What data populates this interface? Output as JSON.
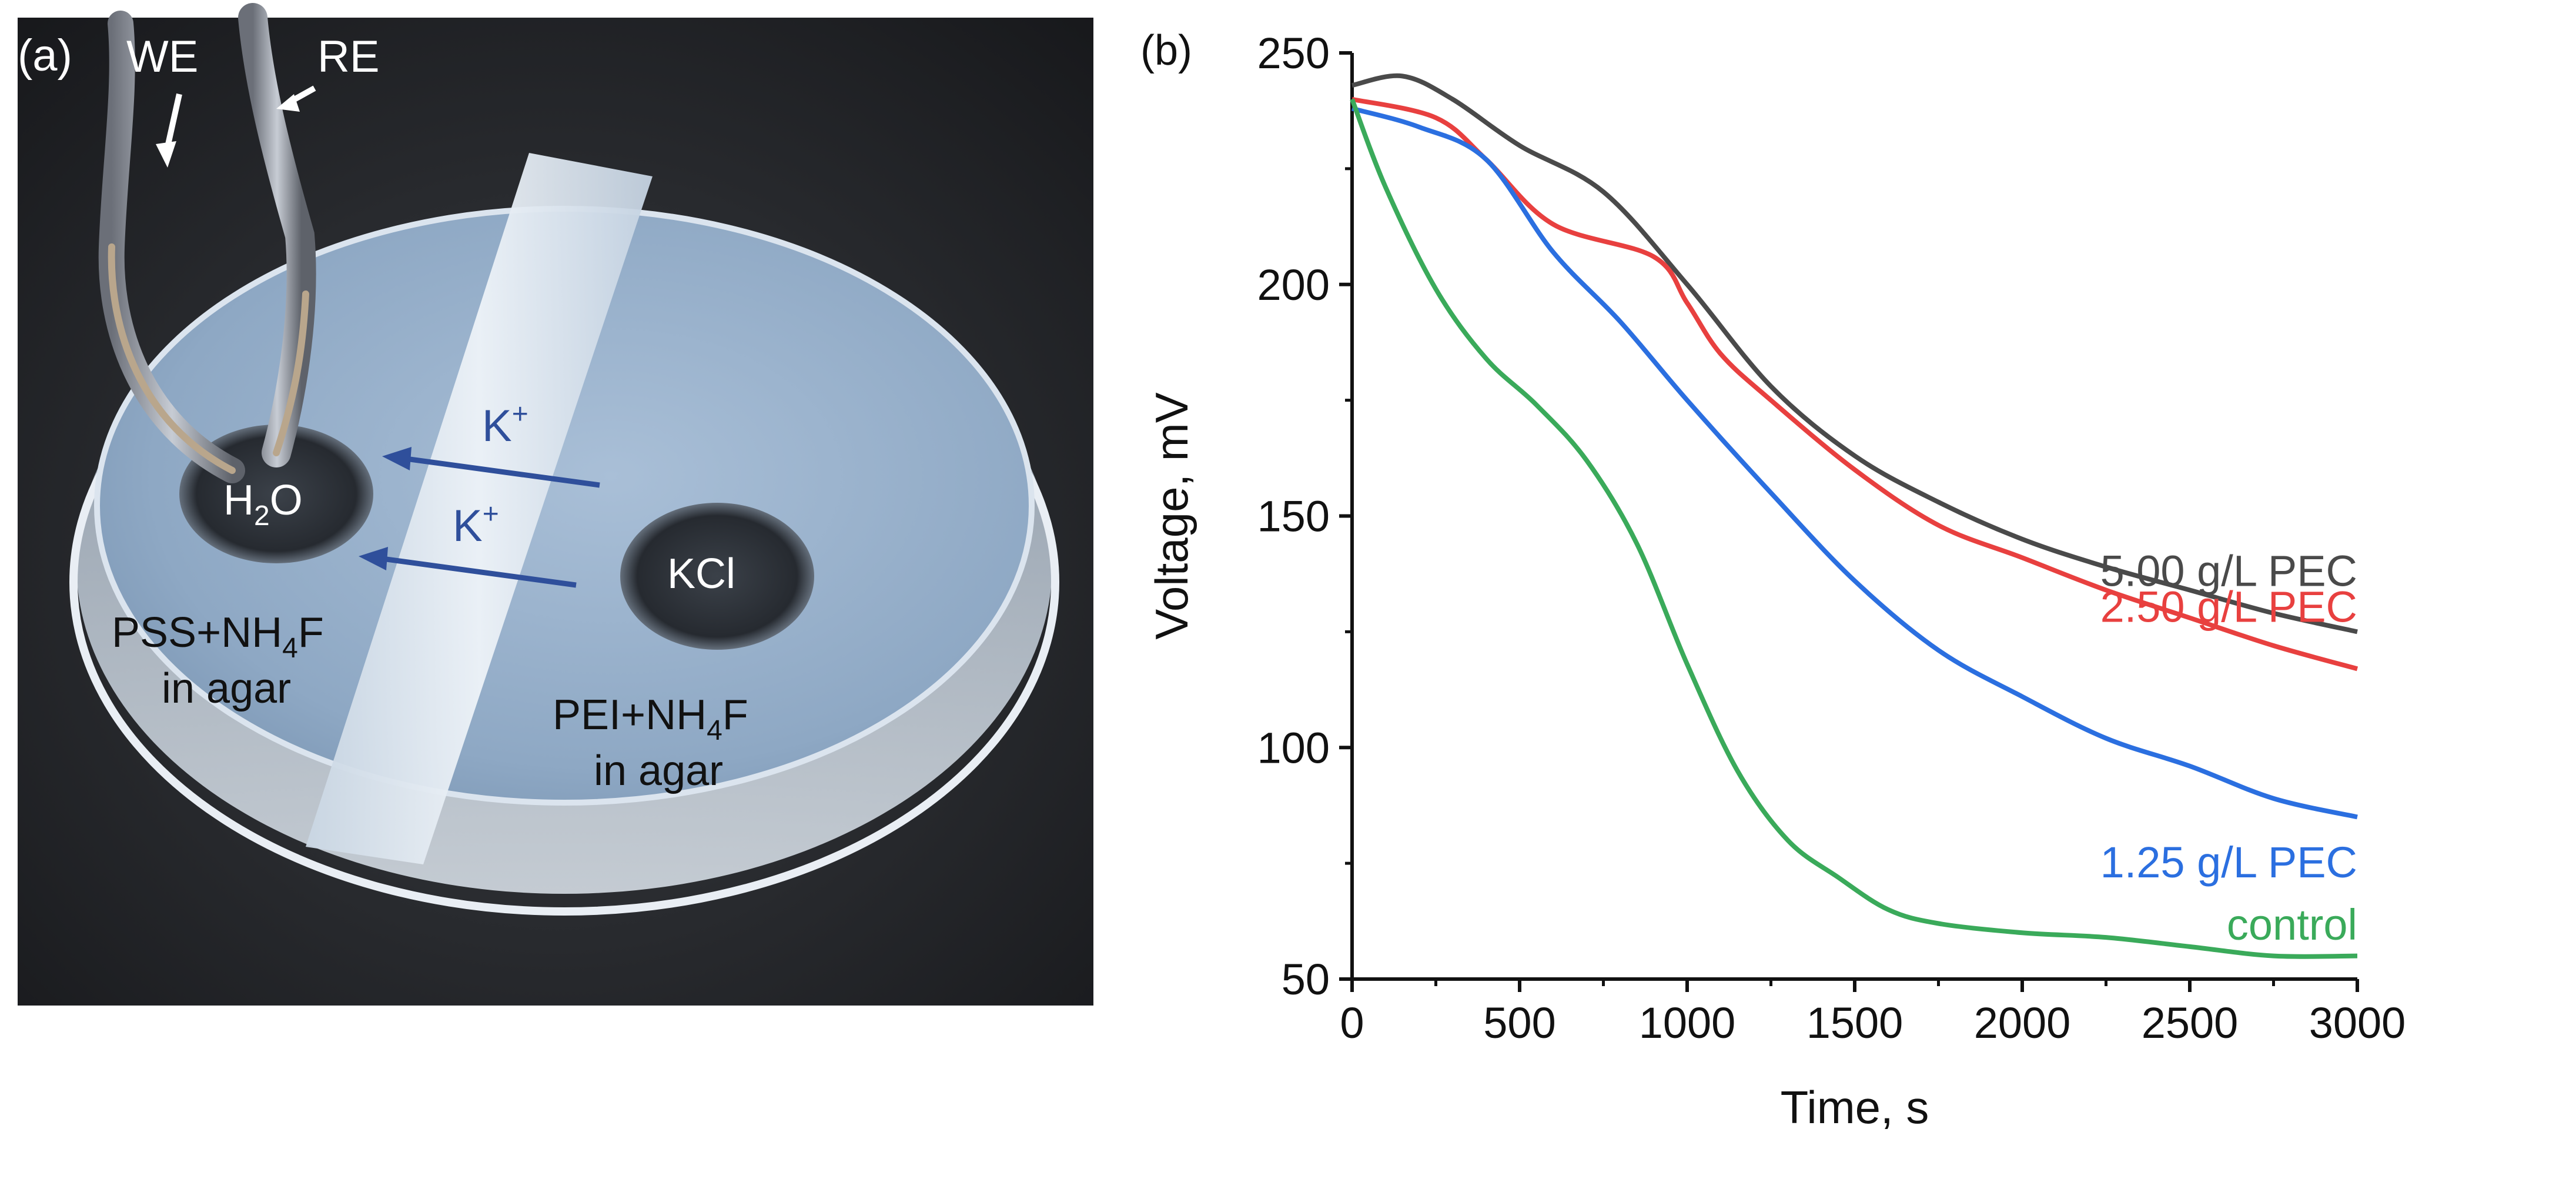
{
  "panel_a": {
    "label": "(a)",
    "we_label": "WE",
    "re_label": "RE",
    "ion_label_1": "K",
    "ion_label_2": "K",
    "ion_charge": "+",
    "water_well": "H",
    "water_well_sub": "2",
    "water_well_end": "O",
    "kcl_well": "KCl",
    "left_gel_line1_a": "PSS+NH",
    "left_gel_line1_sub": "4",
    "left_gel_line1_b": "F",
    "left_gel_line2": "in agar",
    "right_gel_line1_a": "PEI+NH",
    "right_gel_line1_sub": "4",
    "right_gel_line1_b": "F",
    "right_gel_line2": "in agar"
  },
  "panel_b": {
    "label": "(b)"
  },
  "chart_data": {
    "type": "line",
    "xlabel": "Time, s",
    "ylabel": "Voltage, mV",
    "xlim": [
      0,
      3000
    ],
    "ylim": [
      50,
      250
    ],
    "xticks": [
      "0",
      "500",
      "1000",
      "1500",
      "2000",
      "2500",
      "3000"
    ],
    "yticks": [
      "50",
      "100",
      "150",
      "200",
      "250"
    ],
    "grid": false,
    "legend": "inline labels at right end of each curve",
    "series": [
      {
        "name": "5.00 g/L PEC",
        "color": "#4a4a4a",
        "x": [
          0,
          150,
          300,
          500,
          750,
          1000,
          1250,
          1500,
          1750,
          2000,
          2250,
          2500,
          2750,
          3000
        ],
        "y": [
          243,
          245,
          240,
          230,
          220,
          200,
          178,
          163,
          153,
          145,
          139,
          134,
          129,
          125
        ]
      },
      {
        "name": "2.50 g/L PEC",
        "color": "#e8403f",
        "x": [
          0,
          250,
          400,
          600,
          900,
          1000,
          1100,
          1250,
          1500,
          1750,
          2000,
          2250,
          2500,
          2750,
          3000
        ],
        "y": [
          240,
          236,
          227,
          213,
          206,
          196,
          185,
          175,
          160,
          148,
          141,
          134,
          128,
          122,
          117
        ]
      },
      {
        "name": "1.25 g/L PEC",
        "color": "#2b6fe0",
        "x": [
          0,
          200,
          400,
          600,
          800,
          1000,
          1250,
          1500,
          1750,
          2000,
          2250,
          2500,
          2750,
          3000
        ],
        "y": [
          238,
          234,
          227,
          207,
          192,
          175,
          155,
          136,
          121,
          111,
          102,
          96,
          89,
          85
        ]
      },
      {
        "name": "control",
        "color": "#3aaa5a",
        "x": [
          0,
          100,
          250,
          400,
          550,
          700,
          850,
          1000,
          1150,
          1300,
          1450,
          1600,
          1750,
          2000,
          2250,
          2500,
          2750,
          3000
        ],
        "y": [
          240,
          221,
          199,
          184,
          174,
          162,
          144,
          118,
          95,
          80,
          72,
          65,
          62,
          60,
          59,
          57,
          55,
          55
        ]
      }
    ]
  }
}
